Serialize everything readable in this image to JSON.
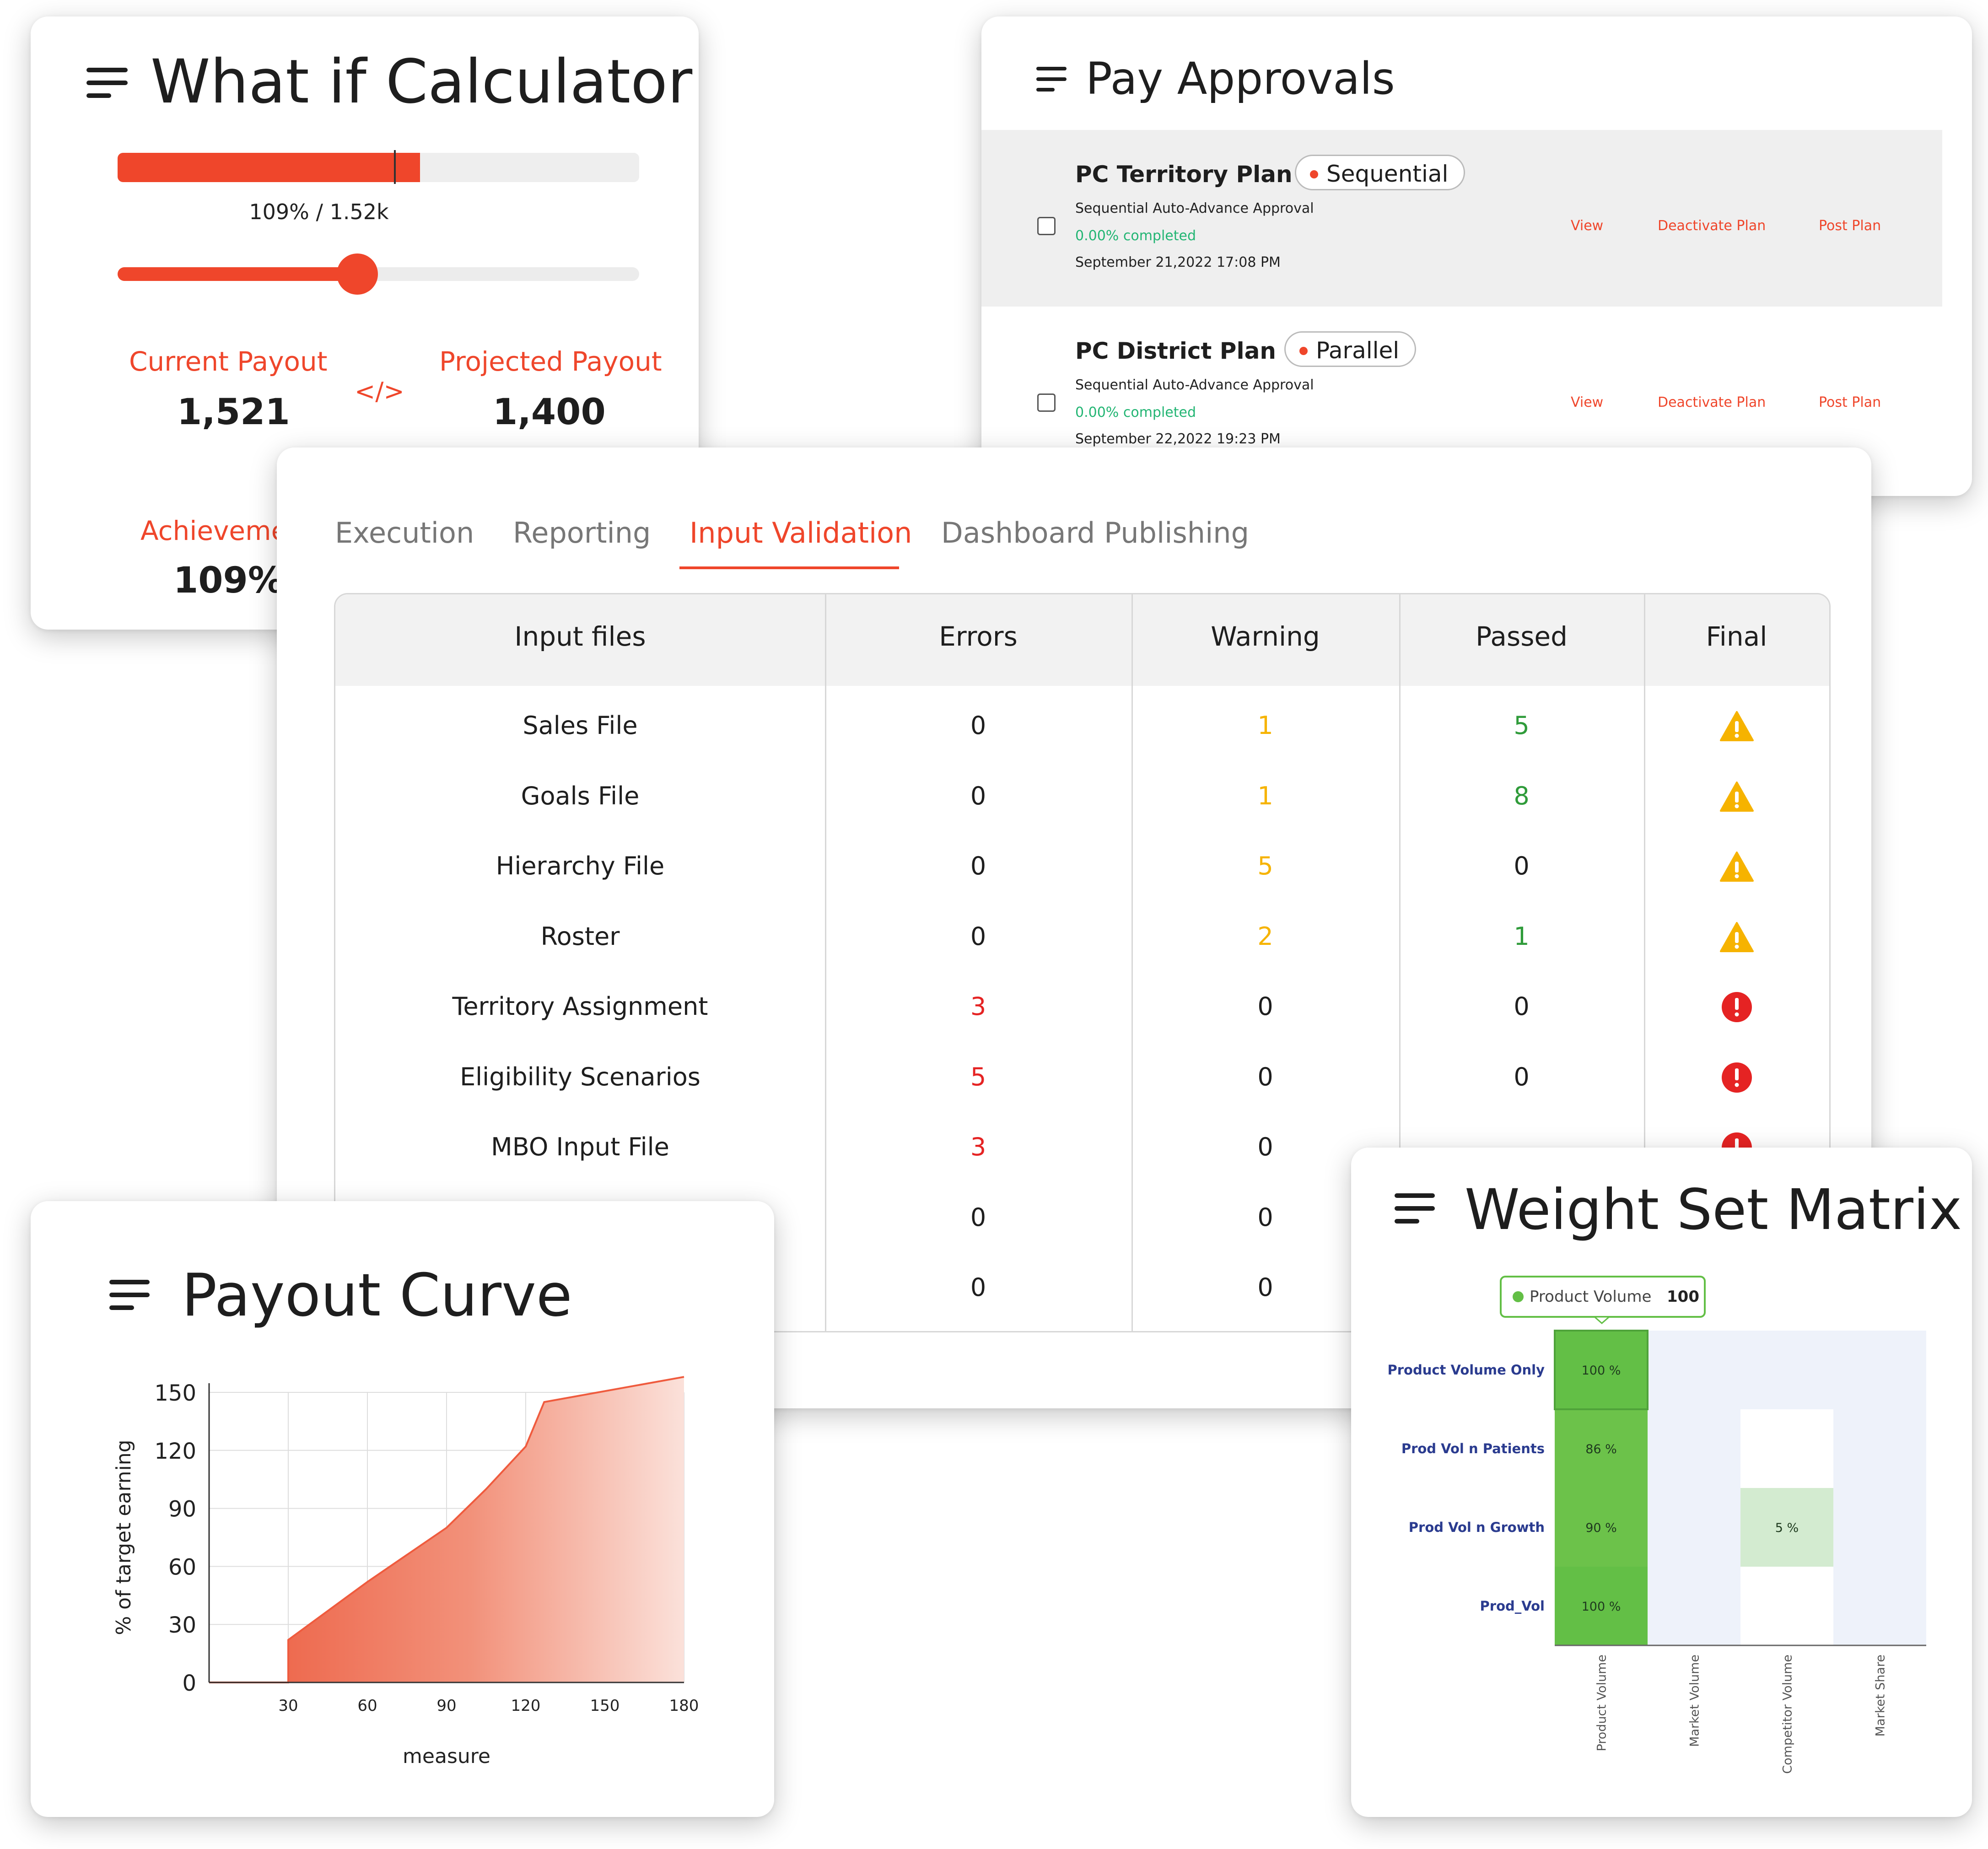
{
  "whatif": {
    "title": "What if Calculator",
    "progress_label": "109% / 1.52k",
    "progress_fraction": 0.58,
    "marker_fraction": 0.53,
    "slider_fraction": 0.46,
    "current_label": "Current Payout",
    "current_value": "1,521",
    "compare_symbol": "</>",
    "projected_label": "Projected Payout",
    "projected_value": "1,400",
    "achievement_label": "Achievement",
    "achievement_value": "109%"
  },
  "approvals": {
    "title": "Pay Approvals",
    "rows": [
      {
        "plan": "PC Territory Plan",
        "type": "Sequential",
        "subtitle": "Sequential Auto-Advance Approval",
        "progress": "0.00% completed",
        "date": "September 21,2022 17:08 PM",
        "view": "View",
        "deactivate": "Deactivate Plan",
        "post": "Post Plan"
      },
      {
        "plan": "PC District Plan",
        "type": "Parallel",
        "subtitle": "Sequential Auto-Advance Approval",
        "progress": "0.00% completed",
        "date": "September 22,2022 19:23 PM",
        "view": "View",
        "deactivate": "Deactivate Plan",
        "post": "Post Plan"
      }
    ]
  },
  "validation": {
    "tabs": [
      "Execution",
      "Reporting",
      "Input Validation",
      "Dashboard Publishing"
    ],
    "active_tab": "Input Validation",
    "headers": [
      "Input files",
      "Errors",
      "Warning",
      "Passed",
      "Final"
    ],
    "rows": [
      {
        "file": "Sales File",
        "errors": "0",
        "warning": "1",
        "passed": "5",
        "final": "warning"
      },
      {
        "file": "Goals File",
        "errors": "0",
        "warning": "1",
        "passed": "8",
        "final": "warning"
      },
      {
        "file": "Hierarchy File",
        "errors": "0",
        "warning": "5",
        "passed": "0",
        "final": "warning"
      },
      {
        "file": "Roster",
        "errors": "0",
        "warning": "2",
        "passed": "1",
        "final": "warning"
      },
      {
        "file": "Territory Assignment",
        "errors": "3",
        "warning": "0",
        "passed": "0",
        "final": "error"
      },
      {
        "file": "Eligibility Scenarios",
        "errors": "5",
        "warning": "0",
        "passed": "0",
        "final": "error"
      },
      {
        "file": "MBO Input File",
        "errors": "3",
        "warning": "0",
        "passed": "",
        "final": "error"
      },
      {
        "file": "",
        "errors": "0",
        "warning": "0",
        "passed": "",
        "final": ""
      },
      {
        "file": "",
        "errors": "0",
        "warning": "0",
        "passed": "",
        "final": ""
      }
    ],
    "colors": {
      "warning": "#f6b300",
      "passed": "#2f9b3a",
      "error": "#e52323"
    }
  },
  "payout": {
    "title": "Payout Curve",
    "chart_data": {
      "type": "area",
      "x": [
        0,
        30,
        30,
        60,
        90,
        105,
        120,
        127,
        180
      ],
      "y": [
        0,
        0,
        22,
        52,
        80,
        100,
        122,
        145,
        158
      ],
      "xlabel": "measure",
      "ylabel": "% of target earning",
      "xlim": [
        0,
        180
      ],
      "ylim": [
        0,
        150
      ],
      "xticks": [
        30,
        60,
        90,
        120,
        150,
        180
      ],
      "yticks": [
        0,
        30,
        60,
        90,
        120,
        150
      ],
      "grid": true,
      "color": "#ef5b3e"
    }
  },
  "matrix": {
    "title": "Weight Set Matrix",
    "tooltip_label": "Product Volume",
    "tooltip_value": "100",
    "chart_data": {
      "type": "heatmap",
      "rows": [
        "Product Volume Only",
        "Prod Vol n Patients",
        "Prod Vol n Growth",
        "Prod_Vol"
      ],
      "columns": [
        "Product Volume",
        "Market Volume",
        "Competitor Volume",
        "Market Share"
      ],
      "cells": [
        {
          "row": 0,
          "col": 0,
          "value": 100,
          "label": "100 %"
        },
        {
          "row": 1,
          "col": 0,
          "value": 86,
          "label": "86 %"
        },
        {
          "row": 2,
          "col": 0,
          "value": 90,
          "label": "90 %"
        },
        {
          "row": 2,
          "col": 2,
          "value": 5,
          "label": "5 %"
        },
        {
          "row": 3,
          "col": 0,
          "value": 100,
          "label": "100 %"
        }
      ]
    }
  }
}
